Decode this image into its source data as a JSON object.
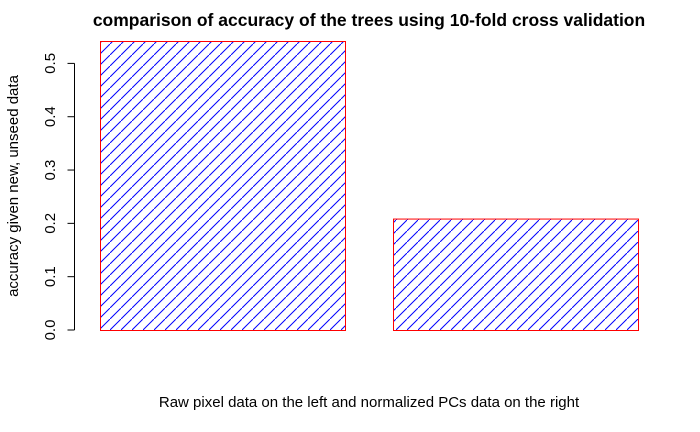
{
  "chart_data": {
    "type": "bar",
    "title": "comparison of accuracy of the trees using 10-fold cross validation",
    "xlabel": "Raw pixel data on the left and normalized PCs data on the right",
    "ylabel": "accuracy given new, unseed data",
    "categories": [
      "",
      ""
    ],
    "values": [
      0.542,
      0.209
    ],
    "ylim": [
      0,
      0.542
    ],
    "yticks": [
      0.0,
      0.1,
      0.2,
      0.3,
      0.4,
      0.5
    ],
    "ytick_labels": [
      "0.0",
      "0.1",
      "0.2",
      "0.3",
      "0.4",
      "0.5"
    ],
    "bar_border_color": "#ff0000",
    "bar_hatch_color": "#0000ff",
    "bar_fill": "hatched-diagonal",
    "grid": false,
    "legend": "none"
  }
}
